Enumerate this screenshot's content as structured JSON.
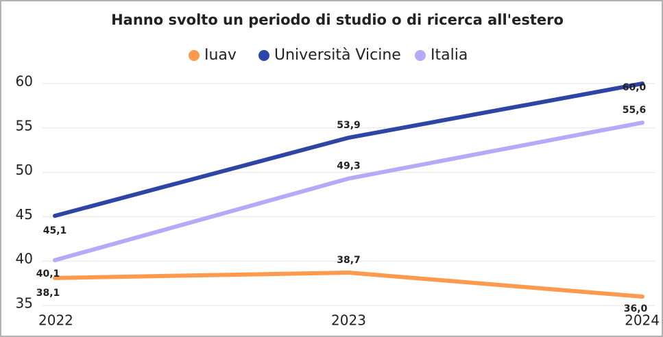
{
  "chart_data": {
    "type": "line",
    "title": "Hanno svolto un periodo di studio o di ricerca all'estero",
    "categories": [
      "2022",
      "2023",
      "2024"
    ],
    "series": [
      {
        "name": "Iuav",
        "color": "#fe9a4e",
        "values": [
          38.1,
          38.7,
          36.0
        ],
        "value_labels": [
          "38,1",
          "38,7",
          "36,0"
        ]
      },
      {
        "name": "Università Vicine",
        "color": "#2f45a6",
        "values": [
          45.1,
          53.9,
          60.0
        ],
        "value_labels": [
          "45,1",
          "53,9",
          "60,0"
        ]
      },
      {
        "name": "Italia",
        "color": "#b4aaf7",
        "values": [
          40.1,
          49.3,
          55.6
        ],
        "value_labels": [
          "40,1",
          "49,3",
          "55,6"
        ]
      }
    ],
    "ylim": [
      35,
      60
    ],
    "yticks": [
      35,
      40,
      45,
      50,
      55,
      60
    ],
    "grid": true
  }
}
